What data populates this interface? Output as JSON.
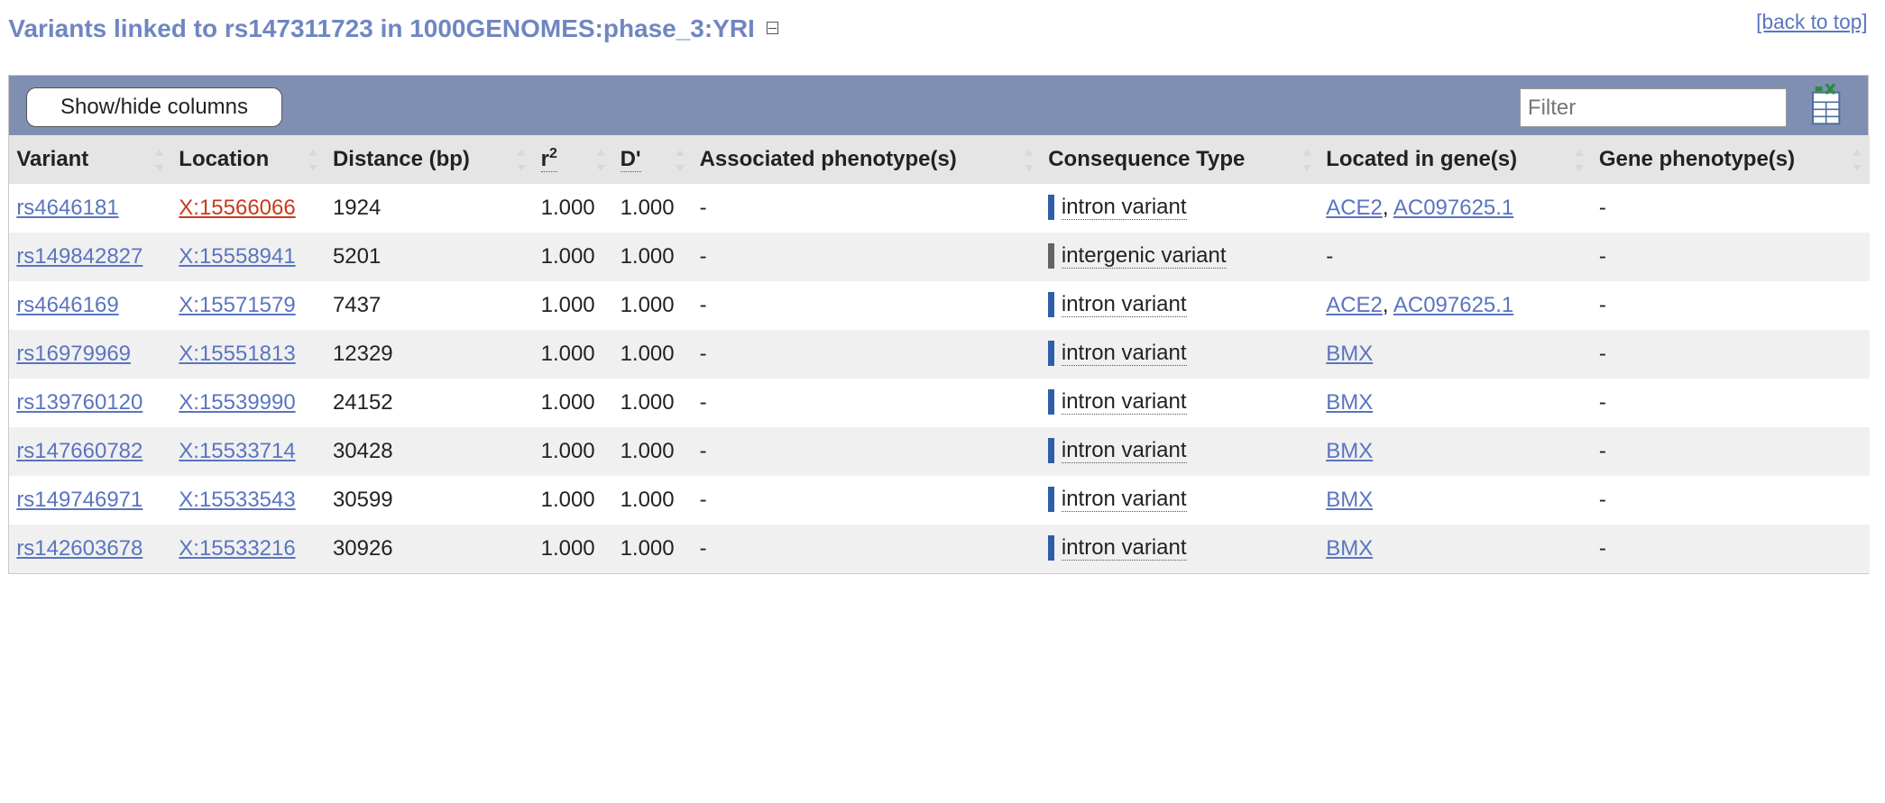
{
  "header": {
    "title": "Variants linked to rs147311723 in 1000GENOMES:phase_3:YRI",
    "back_to_top": "[back to top]"
  },
  "toolbar": {
    "show_hide_label": "Show/hide columns",
    "filter_placeholder": "Filter"
  },
  "columns": {
    "variant": "Variant",
    "location": "Location",
    "distance": "Distance (bp)",
    "r2_base": "r",
    "r2_sup": "2",
    "dprime": "D'",
    "assoc": "Associated phenotype(s)",
    "consequence": "Consequence Type",
    "gene": "Located in gene(s)",
    "gene_pheno": "Gene phenotype(s)"
  },
  "colors": {
    "intron": "#2f5ea8",
    "intergenic": "#636363",
    "link": "#5a74c0",
    "highlight_link": "#c8391c",
    "toolbar": "#7f8fb2"
  },
  "rows": [
    {
      "variant": "rs4646181",
      "location": "X:15566066",
      "location_highlight": true,
      "distance": "1924",
      "r2": "1.000",
      "dprime": "1.000",
      "assoc": "-",
      "consequence": "intron variant",
      "csq_kind": "intron",
      "gene1": "ACE2",
      "sep": ", ",
      "gene2": "AC097625.1",
      "gene_pheno": "-"
    },
    {
      "variant": "rs149842827",
      "location": "X:15558941",
      "location_highlight": false,
      "distance": "5201",
      "r2": "1.000",
      "dprime": "1.000",
      "assoc": "-",
      "consequence": "intergenic variant",
      "csq_kind": "intergenic",
      "gene_text": "-",
      "gene_pheno": "-"
    },
    {
      "variant": "rs4646169",
      "location": "X:15571579",
      "location_highlight": false,
      "distance": "7437",
      "r2": "1.000",
      "dprime": "1.000",
      "assoc": "-",
      "consequence": "intron variant",
      "csq_kind": "intron",
      "gene1": "ACE2",
      "sep": ", ",
      "gene2": "AC097625.1",
      "gene_pheno": "-"
    },
    {
      "variant": "rs16979969",
      "location": "X:15551813",
      "location_highlight": false,
      "distance": "12329",
      "r2": "1.000",
      "dprime": "1.000",
      "assoc": "-",
      "consequence": "intron variant",
      "csq_kind": "intron",
      "gene1": "BMX",
      "gene_pheno": "-"
    },
    {
      "variant": "rs139760120",
      "location": "X:15539990",
      "location_highlight": false,
      "distance": "24152",
      "r2": "1.000",
      "dprime": "1.000",
      "assoc": "-",
      "consequence": "intron variant",
      "csq_kind": "intron",
      "gene1": "BMX",
      "gene_pheno": "-"
    },
    {
      "variant": "rs147660782",
      "location": "X:15533714",
      "location_highlight": false,
      "distance": "30428",
      "r2": "1.000",
      "dprime": "1.000",
      "assoc": "-",
      "consequence": "intron variant",
      "csq_kind": "intron",
      "gene1": "BMX",
      "gene_pheno": "-"
    },
    {
      "variant": "rs149746971",
      "location": "X:15533543",
      "location_highlight": false,
      "distance": "30599",
      "r2": "1.000",
      "dprime": "1.000",
      "assoc": "-",
      "consequence": "intron variant",
      "csq_kind": "intron",
      "gene1": "BMX",
      "gene_pheno": "-"
    },
    {
      "variant": "rs142603678",
      "location": "X:15533216",
      "location_highlight": false,
      "distance": "30926",
      "r2": "1.000",
      "dprime": "1.000",
      "assoc": "-",
      "consequence": "intron variant",
      "csq_kind": "intron",
      "gene1": "BMX",
      "gene_pheno": "-"
    }
  ]
}
